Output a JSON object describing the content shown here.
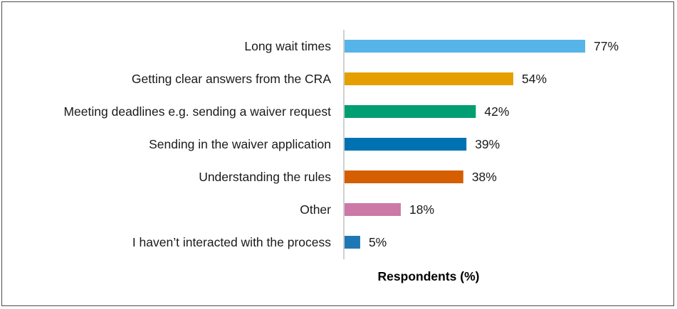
{
  "chart_data": {
    "type": "bar",
    "orientation": "horizontal",
    "title": "",
    "xlabel": "Respondents (%)",
    "ylabel": "",
    "xlim": [
      0,
      100
    ],
    "grid": false,
    "legend": "none",
    "categories": [
      "Long wait times",
      "Getting clear answers from the CRA",
      "Meeting deadlines e.g. sending a waiver request",
      "Sending in the waiver application",
      "Understanding the rules",
      "Other",
      "I haven’t interacted with the process"
    ],
    "values": [
      77,
      54,
      42,
      39,
      38,
      18,
      5
    ],
    "value_labels": [
      "77%",
      "54%",
      "42%",
      "39%",
      "38%",
      "18%",
      "5%"
    ],
    "colors": [
      "#56b4e9",
      "#e69f00",
      "#009e73",
      "#0072b2",
      "#d55e00",
      "#cc79a7",
      "#1f78b4"
    ]
  }
}
